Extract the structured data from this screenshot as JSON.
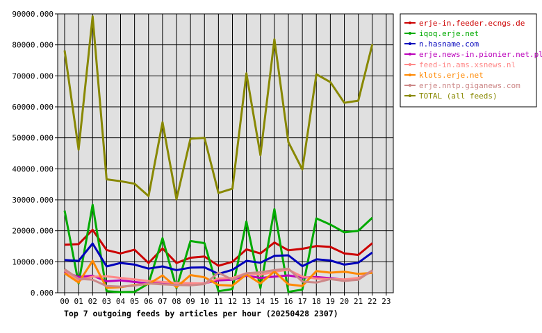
{
  "chart_data": {
    "type": "line",
    "title": "Top 7 outgoing feeds by articles per hour (20250428 2307)",
    "xlabel": "",
    "ylabel": "",
    "x": [
      "00",
      "01",
      "02",
      "03",
      "04",
      "05",
      "06",
      "07",
      "08",
      "09",
      "10",
      "11",
      "12",
      "13",
      "14",
      "15",
      "16",
      "17",
      "18",
      "19",
      "20",
      "21",
      "22",
      "23"
    ],
    "y_ticks": [
      "0.000",
      "10000.000",
      "20000.000",
      "30000.000",
      "40000.000",
      "50000.000",
      "60000.000",
      "70000.000",
      "80000.000",
      "90000.000"
    ],
    "ylim": [
      0,
      90000
    ],
    "grid": true,
    "legend_position": "right",
    "series": [
      {
        "name": "erje-in.feeder.ecngs.de",
        "color": "#cc0000",
        "values": [
          15500,
          15700,
          20300,
          13800,
          12700,
          13900,
          9600,
          14300,
          9600,
          11300,
          11700,
          8700,
          10000,
          14000,
          12700,
          16200,
          13700,
          14200,
          15100,
          14800,
          12700,
          12200,
          16000,
          null
        ]
      },
      {
        "name": "iqoq.erje.net",
        "color": "#00aa00",
        "values": [
          26500,
          3000,
          28400,
          500,
          200,
          300,
          3000,
          17600,
          1500,
          16700,
          16000,
          500,
          1200,
          23000,
          1500,
          27000,
          300,
          1000,
          24000,
          22000,
          19500,
          20000,
          24200,
          null
        ]
      },
      {
        "name": "n.hasname.com",
        "color": "#0000bb",
        "values": [
          10600,
          10300,
          15900,
          8500,
          9600,
          9100,
          7800,
          8500,
          7300,
          8100,
          8200,
          6100,
          7400,
          10300,
          9700,
          11900,
          12100,
          8600,
          10800,
          10400,
          9100,
          9700,
          13000,
          null
        ]
      },
      {
        "name": "erje.news-in.pionier.net.pl",
        "color": "#bb00bb",
        "values": [
          6700,
          5100,
          5500,
          3700,
          4000,
          3500,
          3000,
          3200,
          3000,
          2800,
          3100,
          4000,
          4200,
          5500,
          4800,
          5200,
          5600,
          4900,
          5100,
          4700,
          4200,
          4600,
          7100,
          null
        ]
      },
      {
        "name": "feed-in.ams.xsnews.nl",
        "color": "#ff8888",
        "values": [
          7200,
          4000,
          5200,
          5300,
          4800,
          4300,
          3800,
          3500,
          3200,
          3100,
          3000,
          4600,
          4800,
          6300,
          5800,
          6800,
          7400,
          5200,
          4600,
          4400,
          4300,
          4800,
          6800,
          null
        ]
      },
      {
        "name": "klots.erje.net",
        "color": "#ff8800",
        "values": [
          6300,
          3300,
          10300,
          1600,
          1800,
          2500,
          2800,
          5600,
          1800,
          5700,
          5000,
          2500,
          2300,
          5900,
          3000,
          6900,
          2700,
          2200,
          7000,
          6500,
          6800,
          6100,
          6400,
          null
        ]
      },
      {
        "name": "erje.nntp.giganews.com",
        "color": "#cc8888",
        "values": [
          7600,
          4500,
          4200,
          2200,
          2000,
          2300,
          3000,
          2700,
          2500,
          2400,
          2800,
          6500,
          4200,
          6300,
          6600,
          7300,
          7800,
          3600,
          3300,
          4400,
          3800,
          4200,
          7200,
          null
        ]
      },
      {
        "name": "TOTAL (all feeds)",
        "color": "#888800",
        "values": [
          78200,
          46200,
          89200,
          36600,
          36000,
          35200,
          31200,
          55000,
          30200,
          49700,
          50000,
          32200,
          33600,
          70800,
          44400,
          81800,
          48600,
          39800,
          70500,
          68000,
          61300,
          62000,
          80200,
          null
        ]
      }
    ]
  }
}
